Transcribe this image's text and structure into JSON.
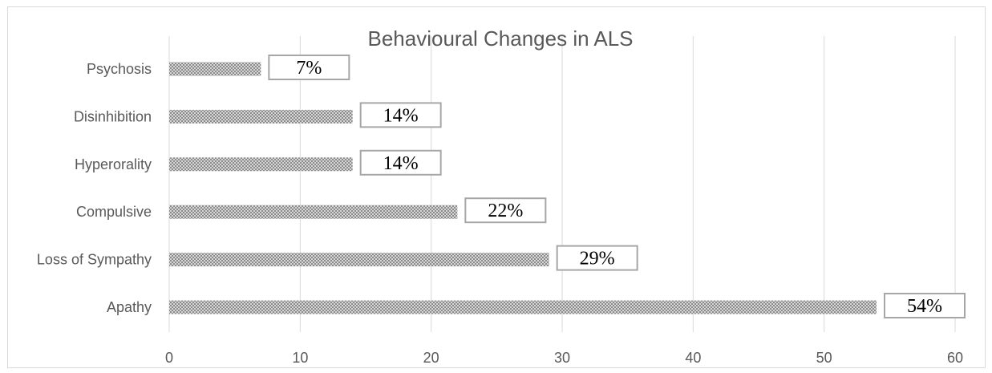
{
  "chart_data": {
    "type": "bar",
    "orientation": "horizontal",
    "title": "Behavioural Changes in ALS",
    "categories": [
      "Apathy",
      "Loss of Sympathy",
      "Compulsive",
      "Hyperorality",
      "Disinhibition",
      "Psychosis"
    ],
    "values": [
      54,
      29,
      22,
      14,
      14,
      7
    ],
    "data_labels": [
      "54%",
      "29%",
      "22%",
      "14%",
      "14%",
      "7%"
    ],
    "xlim": [
      0,
      60
    ],
    "x_ticks": [
      "0",
      "10",
      "20",
      "30",
      "40",
      "50",
      "60"
    ],
    "xlabel": "",
    "ylabel": "",
    "grid": "vertical",
    "legend": "none",
    "colors": {
      "bar_pattern_dark": "#8c8c8c",
      "bar_pattern_light": "#d6d6d6",
      "gridline": "#d9d9d9",
      "text": "#595959",
      "label_border": "#a6a6a6"
    }
  }
}
